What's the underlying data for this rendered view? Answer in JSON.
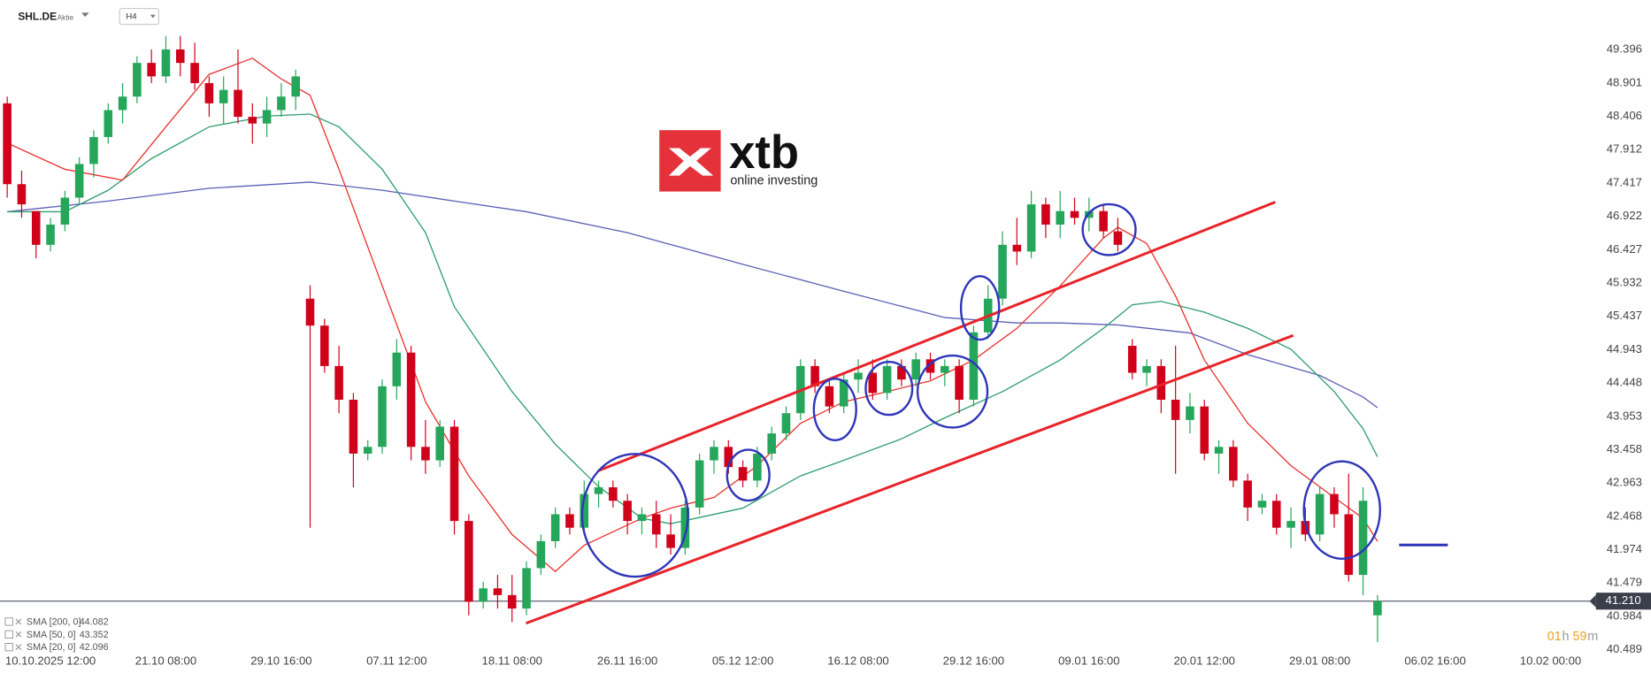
{
  "chart_data": {
    "type": "candlestick",
    "symbol": "SHL.DE",
    "instrument_kind": "Aktie",
    "interval": "H4",
    "logo": {
      "name": "xtb",
      "tagline": "online investing"
    },
    "timer": {
      "hours": "01",
      "hours_unit": "h",
      "minutes": "59",
      "minutes_unit": "m"
    },
    "up_color": "#26a65b",
    "down_color": "#d0021b",
    "xlim": [
      -0.5,
      110
    ],
    "ylim": [
      40.426,
      50.134
    ],
    "xticks": [
      {
        "value": 3,
        "label": "10.10.2025  12:00"
      },
      {
        "value": 11,
        "label": "21.10  08:00"
      },
      {
        "value": 19,
        "label": "29.10  16:00"
      },
      {
        "value": 27,
        "label": "07.11  12:00"
      },
      {
        "value": 35,
        "label": "18.11  08:00"
      },
      {
        "value": 43,
        "label": "26.11  16:00"
      },
      {
        "value": 51,
        "label": "05.12  12:00"
      },
      {
        "value": 59,
        "label": "16.12  08:00"
      },
      {
        "value": 67,
        "label": "29.12  16:00"
      },
      {
        "value": 75,
        "label": "09.01  16:00"
      },
      {
        "value": 83,
        "label": "20.01  12:00"
      },
      {
        "value": 91,
        "label": "29.01  08:00"
      },
      {
        "value": 99,
        "label": "06.02  16:00"
      },
      {
        "value": 107,
        "label": "10.02  00:00"
      }
    ],
    "yticks": [
      49.396,
      48.901,
      48.406,
      47.912,
      47.417,
      46.922,
      46.427,
      45.932,
      45.437,
      44.943,
      44.448,
      43.953,
      43.458,
      42.963,
      42.468,
      41.974,
      41.479,
      40.984,
      40.489
    ],
    "last_price": {
      "value": 41.21,
      "label": "41.210"
    },
    "open": [
      48.6,
      47.4,
      47.0,
      46.5,
      46.8,
      47.2,
      47.7,
      48.1,
      48.5,
      48.7,
      49.2,
      49.0,
      49.4,
      49.2,
      48.9,
      48.6,
      48.8,
      48.4,
      48.3,
      48.5,
      48.7,
      45.7,
      45.3,
      44.7,
      44.2,
      43.4,
      43.5,
      44.4,
      44.9,
      43.5,
      43.3,
      43.8,
      42.4,
      41.2,
      41.4,
      41.3,
      41.1,
      41.7,
      42.1,
      42.5,
      42.3,
      42.8,
      42.9,
      42.7,
      42.4,
      42.5,
      42.2,
      42.0,
      42.6,
      43.3,
      43.5,
      43.2,
      43.0,
      43.4,
      43.7,
      44.0,
      44.7,
      44.4,
      44.1,
      44.5,
      44.6,
      44.3,
      44.7,
      44.5,
      44.8,
      44.6,
      44.7,
      44.2,
      45.2,
      45.7,
      46.5,
      46.4,
      47.1,
      46.8,
      47.0,
      46.9,
      47.0,
      46.7,
      45.0,
      44.6,
      44.7,
      44.2,
      43.9,
      44.1,
      43.4,
      43.5,
      43.0,
      42.6,
      42.7,
      42.3,
      42.4,
      42.2,
      42.8,
      42.5,
      41.6,
      41.0
    ],
    "high": [
      48.7,
      47.6,
      47.0,
      46.9,
      47.3,
      47.8,
      48.2,
      48.6,
      48.9,
      49.3,
      49.4,
      49.6,
      49.6,
      49.5,
      49.0,
      49.0,
      49.4,
      48.6,
      48.7,
      48.9,
      49.1,
      45.9,
      45.4,
      45.0,
      44.3,
      43.6,
      44.5,
      45.1,
      45.0,
      43.9,
      43.9,
      43.9,
      42.5,
      41.5,
      41.6,
      41.6,
      41.8,
      42.2,
      42.6,
      42.6,
      43.0,
      43.0,
      43.0,
      42.8,
      42.6,
      42.7,
      42.5,
      42.7,
      43.4,
      43.6,
      43.6,
      43.3,
      43.5,
      43.8,
      44.1,
      44.8,
      44.8,
      44.5,
      44.6,
      44.8,
      44.8,
      44.8,
      44.8,
      44.9,
      44.9,
      44.8,
      44.8,
      45.3,
      45.9,
      46.7,
      46.9,
      47.3,
      47.2,
      47.3,
      47.2,
      47.2,
      47.1,
      46.9,
      45.1,
      44.8,
      44.8,
      45.0,
      44.3,
      44.2,
      43.6,
      43.6,
      43.1,
      42.8,
      42.8,
      42.6,
      42.6,
      42.9,
      42.9,
      43.1,
      42.9,
      41.3
    ],
    "low": [
      47.2,
      46.9,
      46.3,
      46.4,
      46.7,
      47.1,
      47.5,
      48.0,
      48.3,
      48.6,
      48.9,
      48.9,
      49.0,
      48.8,
      48.4,
      48.3,
      48.3,
      48.0,
      48.1,
      48.4,
      48.5,
      42.3,
      44.6,
      44.0,
      42.9,
      43.3,
      43.4,
      44.2,
      43.3,
      43.1,
      43.2,
      42.2,
      41.0,
      41.1,
      41.1,
      40.9,
      41.0,
      41.6,
      42.0,
      42.2,
      42.2,
      42.6,
      42.6,
      42.2,
      42.2,
      42.0,
      41.9,
      41.9,
      42.5,
      43.1,
      43.1,
      42.9,
      42.9,
      43.3,
      43.6,
      43.9,
      44.3,
      44.0,
      44.0,
      44.3,
      44.2,
      44.2,
      44.4,
      44.4,
      44.5,
      44.4,
      44.0,
      44.1,
      45.1,
      45.6,
      46.2,
      46.3,
      46.6,
      46.6,
      46.8,
      46.7,
      46.6,
      46.4,
      44.5,
      44.4,
      44.0,
      43.1,
      43.7,
      43.3,
      43.1,
      42.9,
      42.4,
      42.5,
      42.2,
      42.0,
      42.1,
      42.1,
      42.3,
      41.5,
      41.3,
      40.6
    ],
    "close": [
      47.4,
      47.1,
      46.5,
      46.8,
      47.2,
      47.7,
      48.1,
      48.5,
      48.7,
      49.2,
      49.0,
      49.4,
      49.2,
      48.9,
      48.6,
      48.8,
      48.4,
      48.3,
      48.5,
      48.7,
      49.0,
      45.3,
      44.7,
      44.2,
      43.4,
      43.5,
      44.4,
      44.9,
      43.5,
      43.3,
      43.8,
      42.4,
      41.2,
      41.4,
      41.3,
      41.1,
      41.7,
      42.1,
      42.5,
      42.3,
      42.8,
      42.9,
      42.7,
      42.4,
      42.5,
      42.2,
      42.0,
      42.6,
      43.3,
      43.5,
      43.2,
      43.0,
      43.4,
      43.7,
      44.0,
      44.7,
      44.4,
      44.1,
      44.5,
      44.6,
      44.3,
      44.7,
      44.5,
      44.8,
      44.6,
      44.7,
      44.2,
      45.2,
      45.7,
      46.5,
      46.4,
      47.1,
      46.8,
      47.0,
      46.9,
      47.0,
      46.7,
      46.5,
      44.6,
      44.7,
      44.2,
      43.9,
      44.1,
      43.4,
      43.5,
      43.0,
      42.6,
      42.7,
      42.3,
      42.4,
      42.2,
      42.8,
      42.5,
      41.6,
      42.7,
      41.21
    ],
    "series": [
      {
        "name": "SMA [200, 0]",
        "color": "#5b5fb5",
        "x": [
          0,
          7,
          14,
          21,
          26,
          31,
          36,
          43,
          51,
          58,
          65,
          70,
          73,
          77,
          82,
          86,
          91,
          94,
          95
        ],
        "values": [
          46.99,
          47.15,
          47.34,
          47.43,
          47.31,
          47.15,
          46.99,
          46.68,
          46.21,
          45.81,
          45.42,
          45.34,
          45.34,
          45.31,
          45.19,
          44.87,
          44.56,
          44.24,
          44.082
        ]
      },
      {
        "name": "SMA [50, 0]",
        "color": "#2e9e6e",
        "x": [
          0,
          4,
          7,
          10,
          14,
          18,
          21,
          23,
          26,
          29,
          31,
          35,
          38,
          41,
          44,
          46,
          51,
          55,
          58,
          62,
          65,
          69,
          73,
          76,
          78,
          80,
          83,
          86,
          89,
          92,
          94,
          95
        ],
        "values": [
          46.99,
          46.99,
          47.31,
          47.78,
          48.25,
          48.41,
          48.44,
          48.25,
          47.62,
          46.68,
          45.58,
          44.32,
          43.54,
          42.91,
          42.44,
          42.36,
          42.59,
          43.07,
          43.3,
          43.62,
          43.93,
          44.32,
          44.79,
          45.26,
          45.61,
          45.66,
          45.5,
          45.26,
          44.95,
          44.32,
          43.77,
          43.352
        ]
      },
      {
        "name": "SMA [20, 0]",
        "color": "#e8322f",
        "x": [
          0,
          4,
          8,
          11,
          14,
          17,
          19,
          21,
          23,
          26,
          29,
          32,
          35,
          38,
          40,
          44,
          46,
          49,
          52,
          55,
          58,
          61,
          64,
          67,
          70,
          73,
          76,
          77,
          79,
          81,
          83,
          86,
          89,
          92,
          94,
          95
        ],
        "values": [
          48.01,
          47.62,
          47.46,
          48.25,
          49.03,
          49.27,
          48.96,
          48.72,
          47.62,
          45.89,
          44.17,
          43.07,
          42.2,
          41.65,
          42.04,
          42.44,
          42.59,
          42.75,
          43.22,
          43.85,
          44.17,
          44.32,
          44.48,
          44.79,
          45.26,
          45.89,
          46.6,
          46.76,
          46.52,
          45.74,
          44.79,
          43.85,
          43.22,
          42.75,
          42.44,
          42.096
        ]
      }
    ]
  }
}
